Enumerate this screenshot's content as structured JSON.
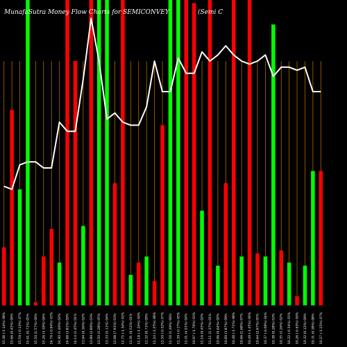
{
  "chart_data": {
    "type": "bar",
    "title_left": "MunafaSutra  Money Flow  Charts for SEMICONVEY",
    "title_right": "(Semi   C",
    "ylim": [
      0,
      100
    ],
    "grid": "vertical-orange",
    "colors": {
      "background": "#000000",
      "up": "#00ff00",
      "down": "#ff0000",
      "line": "#ffffff",
      "grid": "#b36a00"
    },
    "categories": [
      "15.48 (-1.14%) 08%",
      "15.66 (0.45%) 09%",
      "15.59 (-0.13%) 07%",
      "15.61 (0.71%) 05%",
      "15.50 (1.57%) 06%",
      "15.26 (3.39%) 04%",
      "14.76 (-0.94%) 03%",
      "14.90 (1.49%) 02%",
      "14.68 (3.81%) 00%",
      "14.14 (1.45%) 01%",
      "13.94 (0.36%) 02%",
      "13.89 (2.89%) 03%",
      "13.50 (1.28%) 05%",
      "13.33 (5.11%) 04%",
      "12.68 (7.91%) 03%",
      "11.75 (-1.34%) 02%",
      "11.91 (6.52%) 01%",
      "11.18 (-1.24%) 00%",
      "11.32 (0.71%) 09%",
      "11.24 (-2.25%) 08%",
      "11.50 (-0.52%) 07%",
      "11.56 (1.49%) 06%",
      "11.39 (-0.17%) 05%",
      "11.41 (4.01%) 04%",
      "10.97 (-1.70%) 03%",
      "11.16 (0.45%) 02%",
      "11.11 (1.37%) 01%",
      "10.96 (0.64%) 00%",
      "10.89 (3.87%) 09%",
      "10.48 (-1.71%) 08%",
      "10.66 (1.68%) 07%",
      "10.49 (-1.45%) 06%",
      "10.64 (2.67%) 05%",
      "10.37 (-0.09%) 04%",
      "10.38 (0.28%) 03%",
      "10.35 (1.26%) 02%",
      "10.22 (-0.34%) 01%",
      "10.26 (-0.63%) 00%",
      "10.32 (0.12%) 09%",
      "10.31 (0.38%) 08%",
      "10.27 (-1.15%) 07%"
    ],
    "series": [
      {
        "kind": "bars",
        "direction": [
          "down",
          "down",
          "up",
          "up",
          "down",
          "down",
          "down",
          "up",
          "down",
          "down",
          "up",
          "down",
          "up",
          "up",
          "down",
          "down",
          "up",
          "down",
          "up",
          "down",
          "down",
          "up",
          "up",
          "down",
          "down",
          "up",
          "down",
          "up",
          "down",
          "down",
          "up",
          "down",
          "down",
          "up",
          "up",
          "down",
          "up",
          "down",
          "up",
          "up",
          "down"
        ],
        "values": [
          19,
          64,
          38,
          100,
          1,
          16,
          25,
          14,
          100,
          80,
          26,
          100,
          100,
          100,
          40,
          100,
          10,
          14,
          16,
          8,
          59,
          100,
          100,
          100,
          99,
          31,
          100,
          13,
          40,
          100,
          16,
          100,
          17,
          16,
          92,
          18,
          14,
          3,
          13,
          44,
          44
        ]
      },
      {
        "kind": "line",
        "values": [
          39,
          38,
          46,
          47,
          47,
          45,
          45,
          60,
          57,
          57,
          74,
          94,
          80,
          61,
          63,
          60,
          59,
          59,
          65,
          80,
          70,
          70,
          81,
          76,
          76,
          83,
          80,
          82,
          85,
          82,
          80,
          79,
          80,
          82,
          75,
          78,
          78,
          77,
          78,
          70,
          70
        ]
      }
    ]
  }
}
